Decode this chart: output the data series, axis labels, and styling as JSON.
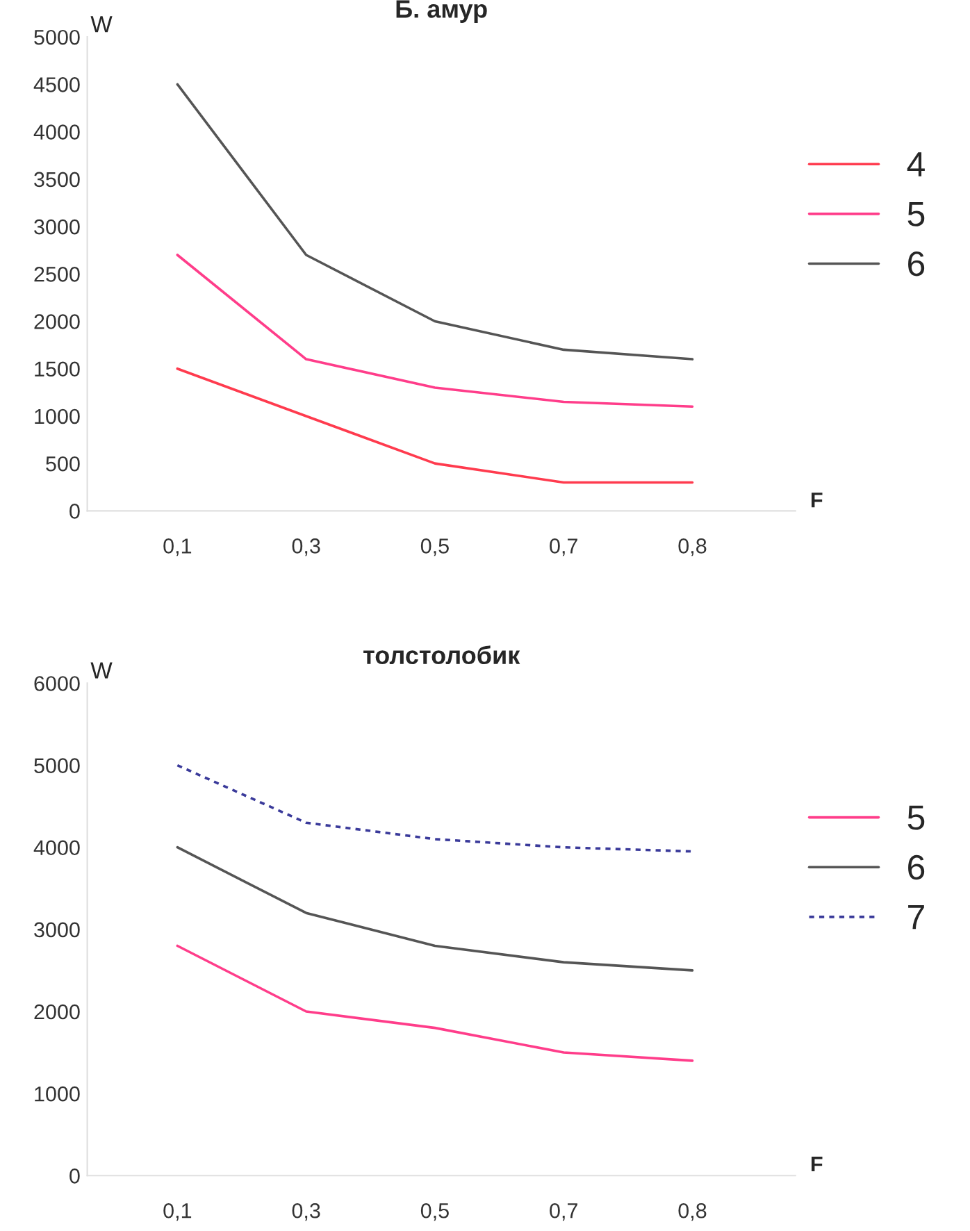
{
  "chart_data": [
    {
      "type": "line",
      "title": "Б. амур",
      "xlabel": "F",
      "ylabel": "W",
      "categories": [
        "0,1",
        "0,3",
        "0,5",
        "0,7",
        "0,8"
      ],
      "ylim": [
        0,
        5000
      ],
      "yticks": [
        0,
        500,
        1000,
        1500,
        2000,
        2500,
        3000,
        3500,
        4000,
        4500,
        5000
      ],
      "grid": false,
      "legend": "right",
      "marker": "none",
      "series": [
        {
          "name": "4",
          "color": "#ff3b4e",
          "values": [
            1500,
            1000,
            500,
            300,
            300
          ]
        },
        {
          "name": "5",
          "color": "#ff3d8a",
          "values": [
            2700,
            1600,
            1300,
            1150,
            1100
          ]
        },
        {
          "name": "6",
          "color": "#555555",
          "values": [
            4500,
            2700,
            2000,
            1700,
            1600
          ]
        }
      ]
    },
    {
      "type": "line",
      "title": "толстолобик",
      "xlabel": "F",
      "ylabel": "W",
      "categories": [
        "0,1",
        "0,3",
        "0,5",
        "0,7",
        "0,8"
      ],
      "ylim": [
        0,
        6000
      ],
      "yticks": [
        0,
        1000,
        2000,
        3000,
        4000,
        5000,
        6000
      ],
      "grid": false,
      "legend": "right",
      "marker": "none",
      "series": [
        {
          "name": "5",
          "color": "#ff3d8a",
          "values": [
            2800,
            2000,
            1800,
            1500,
            1400
          ]
        },
        {
          "name": "6",
          "color": "#555555",
          "values": [
            4000,
            3200,
            2800,
            2600,
            2500
          ]
        },
        {
          "name": "7",
          "color": "#3a3a9a",
          "values": [
            5000,
            4300,
            4100,
            4000,
            3950
          ],
          "line_style": "dotted"
        }
      ]
    }
  ]
}
